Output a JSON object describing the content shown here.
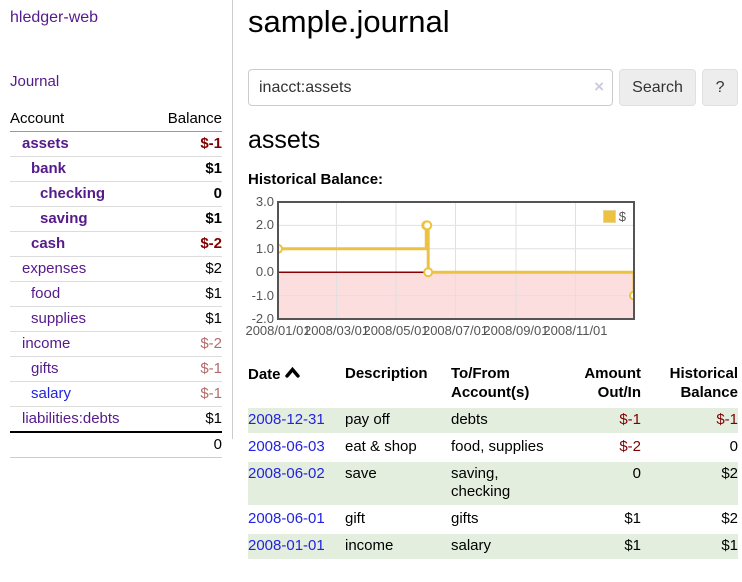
{
  "app": {
    "brand": "hledger-web",
    "journal_link": "Journal"
  },
  "sidebar": {
    "headers": {
      "account": "Account",
      "balance": "Balance"
    },
    "rows": [
      {
        "account": "assets",
        "balance": "$-1"
      },
      {
        "account": "bank",
        "balance": "$1"
      },
      {
        "account": "checking",
        "balance": "0"
      },
      {
        "account": "saving",
        "balance": "$1"
      },
      {
        "account": "cash",
        "balance": "$-2"
      },
      {
        "account": "expenses",
        "balance": "$2"
      },
      {
        "account": "food",
        "balance": "$1"
      },
      {
        "account": "supplies",
        "balance": "$1"
      },
      {
        "account": "income",
        "balance": "$-2"
      },
      {
        "account": "gifts",
        "balance": "$-1"
      },
      {
        "account": "salary",
        "balance": "$-1"
      },
      {
        "account": "liabilities:debts",
        "balance": "$1"
      }
    ],
    "total": "0"
  },
  "main": {
    "title": "sample.journal",
    "search": {
      "value": "inacct:assets",
      "clear": "×",
      "search_button": "Search",
      "help_button": "?"
    },
    "account_heading": "assets",
    "chart_title": "Historical Balance:"
  },
  "chart_data": {
    "type": "line",
    "title": "Historical Balance",
    "series": [
      {
        "name": "$",
        "steps": true,
        "points": [
          [
            "2008-01-01",
            1
          ],
          [
            "2008-06-01",
            2
          ],
          [
            "2008-06-02",
            2
          ],
          [
            "2008-06-03",
            0
          ],
          [
            "2008-12-31",
            -1
          ]
        ]
      }
    ],
    "x_range": [
      "2008-01-01",
      "2008-12-31"
    ],
    "ylim": [
      -2.0,
      3.0
    ],
    "y_ticks": [
      3.0,
      2.0,
      1.0,
      0.0,
      -1.0,
      -2.0
    ],
    "x_ticks": [
      "2008/01/01",
      "2008/03/01",
      "2008/05/01",
      "2008/07/01",
      "2008/09/01",
      "2008/11/01"
    ],
    "legend_position": "top-right",
    "grid": true,
    "colors": {
      "line": "#edc240",
      "negative_region": "#fcdede",
      "zero_line": "#8b0000",
      "gridline": "#e0e0e0",
      "border": "#545454"
    }
  },
  "register": {
    "headers": {
      "date": "Date",
      "description": "Description",
      "account": "To/From Account(s)",
      "amount": "Amount Out/In",
      "balance": "Historical Balance"
    },
    "rows": [
      {
        "date": "2008-12-31",
        "description": "pay off",
        "account": "debts",
        "amount": "$-1",
        "balance": "$-1"
      },
      {
        "date": "2008-06-03",
        "description": "eat & shop",
        "account": "food, supplies",
        "amount": "$-2",
        "balance": "0"
      },
      {
        "date": "2008-06-02",
        "description": "save",
        "account": "saving, checking",
        "amount": "0",
        "balance": "$2"
      },
      {
        "date": "2008-06-01",
        "description": "gift",
        "account": "gifts",
        "amount": "$1",
        "balance": "$2"
      },
      {
        "date": "2008-01-01",
        "description": "income",
        "account": "salary",
        "amount": "$1",
        "balance": "$1"
      }
    ]
  }
}
